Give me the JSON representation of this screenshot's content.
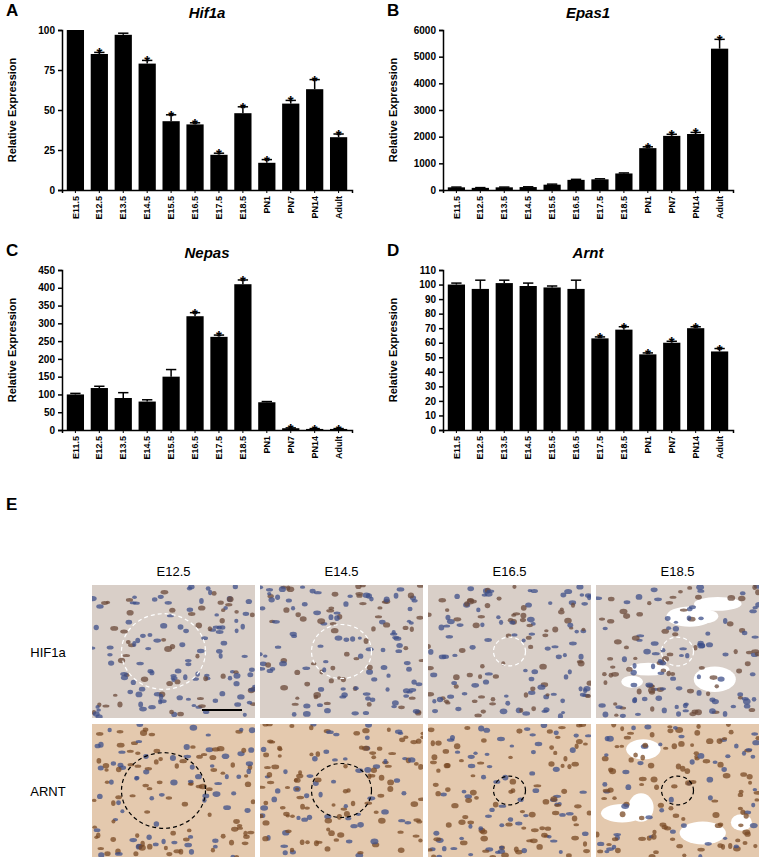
{
  "chart_data": [
    {
      "type": "bar",
      "panel": "A",
      "title": "Hif1a",
      "y_label": "Relative Expression",
      "categories": [
        "E11.5",
        "E12.5",
        "E13.5",
        "E14.5",
        "E15.5",
        "E16.5",
        "E17.5",
        "E18.5",
        "PN1",
        "PN7",
        "PN14",
        "Adult"
      ],
      "values": [
        100,
        85,
        97,
        79,
        43,
        41,
        22,
        48,
        17,
        54,
        63,
        33
      ],
      "errors": [
        0.5,
        1,
        1,
        2,
        4,
        1,
        1,
        4,
        2,
        2,
        6,
        2
      ],
      "annotations": [
        null,
        "*",
        null,
        "*",
        "*",
        "*",
        "*",
        "*",
        "*",
        "*",
        "*",
        "*"
      ],
      "color": "#000000",
      "ylim": [
        0,
        100
      ],
      "yticks": [
        0,
        25,
        50,
        75,
        100
      ]
    },
    {
      "type": "bar",
      "panel": "B",
      "title": "Epas1",
      "y_label": "Relative Expression",
      "categories": [
        "E11.5",
        "E12.5",
        "E13.5",
        "E14.5",
        "E15.5",
        "E16.5",
        "E17.5",
        "E18.5",
        "PN1",
        "PN7",
        "PN14",
        "Adult"
      ],
      "values": [
        100,
        80,
        100,
        110,
        200,
        380,
        400,
        620,
        1570,
        2030,
        2100,
        5300
      ],
      "errors": [
        10,
        10,
        10,
        10,
        20,
        20,
        20,
        20,
        50,
        60,
        60,
        350
      ],
      "annotations": [
        null,
        null,
        null,
        null,
        null,
        null,
        null,
        null,
        "*",
        "*",
        "*",
        "*"
      ],
      "color": "#000000",
      "ylim": [
        0,
        6000
      ],
      "yticks": [
        0,
        1000,
        2000,
        3000,
        4000,
        5000,
        6000
      ]
    },
    {
      "type": "bar",
      "panel": "C",
      "title": "Nepas",
      "y_label": "Relative Expression",
      "categories": [
        "E11.5",
        "E12.5",
        "E13.5",
        "E14.5",
        "E15.5",
        "E16.5",
        "E17.5",
        "E18.5",
        "PN1",
        "PN7",
        "PN14",
        "Adult"
      ],
      "values": [
        100,
        118,
        90,
        80,
        150,
        320,
        262,
        410,
        78,
        5,
        3,
        3
      ],
      "errors": [
        3,
        5,
        15,
        5,
        20,
        10,
        5,
        12,
        2,
        1,
        1,
        1
      ],
      "annotations": [
        null,
        null,
        null,
        null,
        null,
        "*",
        "*",
        "*",
        null,
        "*",
        "*",
        "*"
      ],
      "color": "#000000",
      "ylim": [
        0,
        450
      ],
      "yticks": [
        0,
        50,
        100,
        150,
        200,
        250,
        300,
        350,
        400,
        450
      ]
    },
    {
      "type": "bar",
      "panel": "D",
      "title": "Arnt",
      "y_label": "Relative Expression",
      "categories": [
        "E11.5",
        "E12.5",
        "E13.5",
        "E14.5",
        "E15.5",
        "E16.5",
        "E17.5",
        "E18.5",
        "PN1",
        "PN7",
        "PN14",
        "Adult"
      ],
      "values": [
        100,
        97,
        101,
        99,
        98,
        97,
        63,
        69,
        52,
        60,
        70,
        54
      ],
      "errors": [
        1,
        6,
        2,
        2,
        1,
        6,
        1,
        2,
        1,
        1,
        1,
        2
      ],
      "annotations": [
        null,
        null,
        null,
        null,
        null,
        null,
        "*",
        "*",
        "*",
        "*",
        "*",
        "*"
      ],
      "color": "#000000",
      "ylim": [
        0,
        110
      ],
      "yticks": [
        0,
        10,
        20,
        30,
        40,
        50,
        60,
        70,
        80,
        90,
        100,
        110
      ]
    }
  ],
  "figure_e": {
    "panel": "E",
    "columns": [
      "E12.5",
      "E14.5",
      "E16.5",
      "E18.5"
    ],
    "rows": [
      "HIF1a",
      "ARNT"
    ]
  }
}
